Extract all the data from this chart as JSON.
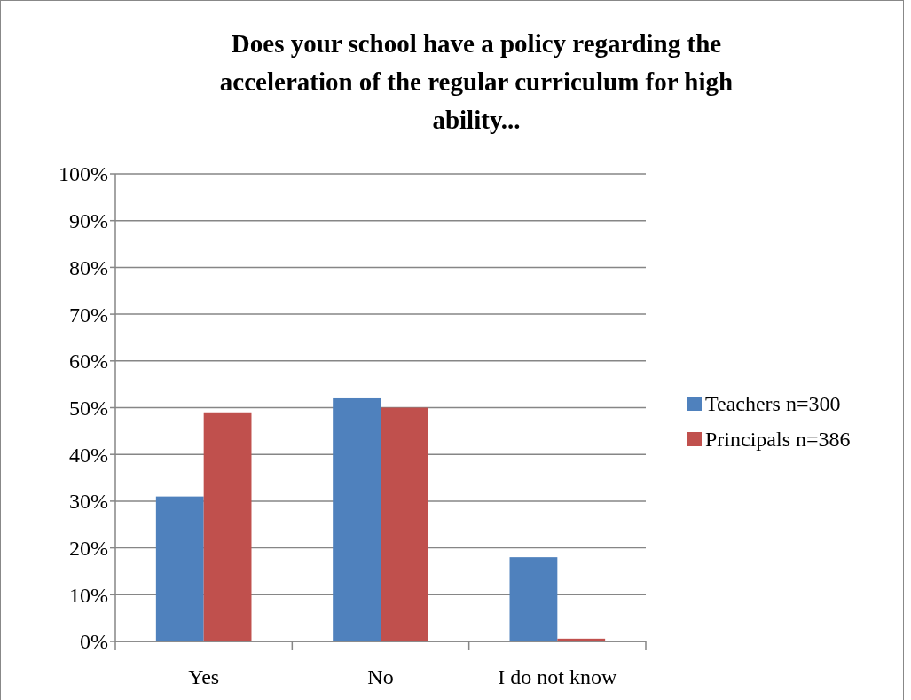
{
  "chart_data": {
    "type": "bar",
    "title": "Does your school have a policy regarding the acceleration of the regular curriculum for high ability...",
    "categories": [
      "Yes",
      "No",
      "I do not know"
    ],
    "series": [
      {
        "name": "Teachers n=300",
        "color": "#4f81bd",
        "values": [
          31,
          52,
          18
        ]
      },
      {
        "name": "Principals n=386",
        "color": "#c0504d",
        "values": [
          49,
          50,
          0.6
        ]
      }
    ],
    "ylim": [
      0,
      100
    ],
    "yticks": [
      {
        "value": 0,
        "label": "0%"
      },
      {
        "value": 10,
        "label": "10%"
      },
      {
        "value": 20,
        "label": "20%"
      },
      {
        "value": 30,
        "label": "30%"
      },
      {
        "value": 40,
        "label": "40%"
      },
      {
        "value": 50,
        "label": "50%"
      },
      {
        "value": 60,
        "label": "60%"
      },
      {
        "value": 70,
        "label": "70%"
      },
      {
        "value": 80,
        "label": "80%"
      },
      {
        "value": 90,
        "label": "90%"
      },
      {
        "value": 100,
        "label": "100%"
      }
    ],
    "grid": "y",
    "legend": "right"
  }
}
